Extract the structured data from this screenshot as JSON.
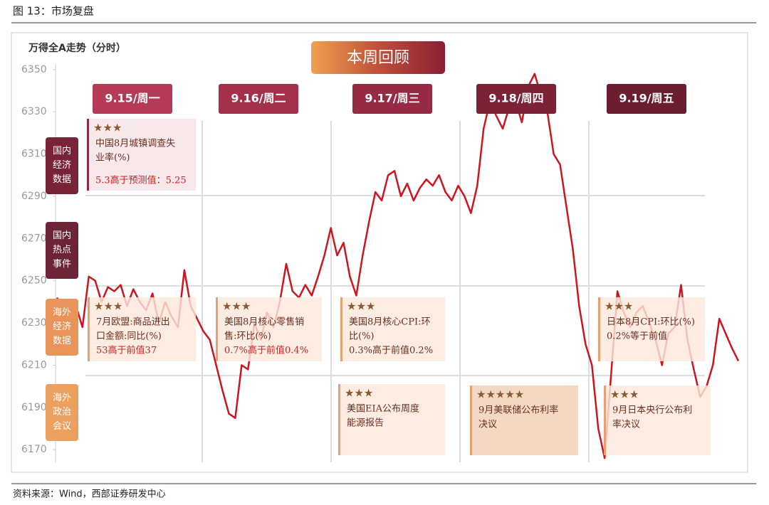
{
  "header": {
    "title": "图 13：市场复盘"
  },
  "chart_data": {
    "type": "line",
    "title": "万得全A走势（分时）",
    "banner": "本周回顾",
    "series": [
      {
        "name": "万得全A",
        "color": "#d0141e",
        "values": [
          6242,
          6236,
          6230,
          6238,
          6228,
          6252,
          6250,
          6240,
          6247,
          6245,
          6248,
          6238,
          6246,
          6240,
          6236,
          6244,
          6230,
          6240,
          6233,
          6228,
          6255,
          6238,
          6232,
          6226,
          6222,
          6210,
          6198,
          6187,
          6185,
          6210,
          6208,
          6230,
          6222,
          6235,
          6228,
          6240,
          6258,
          6245,
          6242,
          6248,
          6243,
          6252,
          6262,
          6275,
          6262,
          6268,
          6252,
          6243,
          6262,
          6278,
          6292,
          6288,
          6300,
          6302,
          6290,
          6296,
          6288,
          6294,
          6298,
          6295,
          6300,
          6292,
          6288,
          6295,
          6290,
          6282,
          6295,
          6322,
          6335,
          6328,
          6322,
          6332,
          6335,
          6325,
          6342,
          6348,
          6338,
          6330,
          6310,
          6305,
          6285,
          6265,
          6238,
          6220,
          6210,
          6180,
          6166,
          6205,
          6245,
          6235,
          6228,
          6235,
          6238,
          6230,
          6222,
          6210,
          6225,
          6228,
          6248,
          6222,
          6208,
          6195,
          6200,
          6210,
          6232,
          6225,
          6218,
          6212
        ]
      }
    ],
    "ylim": [
      6164,
      6356
    ],
    "yticks": [
      6170,
      6190,
      6210,
      6230,
      6250,
      6270,
      6290,
      6310,
      6330,
      6350
    ],
    "days": [
      "9.15/周一",
      "9.16/周二",
      "9.17/周三",
      "9.18/周四",
      "9.19/周五"
    ],
    "rows": [
      "国内经济数据",
      "国内热点事件",
      "海外经济数据",
      "海外政治会议"
    ],
    "events": [
      {
        "stars": "★★★",
        "lines": [
          "中国8月城镇调查失",
          "业率(%)"
        ],
        "note": "5.3高于预测值：5.25"
      },
      {
        "stars": "★★★",
        "lines": [
          "7月欧盟:商品进出",
          "口金额:同比(%)"
        ],
        "note": "53高于前值37"
      },
      {
        "stars": "★★★",
        "lines": [
          "美国8月核心零售销",
          "售:环比(%)"
        ],
        "note": "0.7%高于前值0.4%"
      },
      {
        "stars": "★★★",
        "lines": [
          "美国8月核心CPI:环",
          "比(%)",
          "0.3%高于前值0.2%"
        ]
      },
      {
        "stars": "★★★",
        "lines": [
          "日本8月CPI:环比(%)",
          "0.2%等于前值"
        ]
      },
      {
        "stars": "★★★",
        "lines": [
          "美国EIA公布周度",
          "能源报告"
        ]
      },
      {
        "stars": "★★★★★",
        "lines": [
          "9月美联储公布利率",
          "决议"
        ]
      },
      {
        "stars": "★★★",
        "lines": [
          "9月日本央行公布利",
          "率决议"
        ]
      }
    ]
  },
  "footer": {
    "source": "资料来源：Wind，西部证券研发中心"
  }
}
